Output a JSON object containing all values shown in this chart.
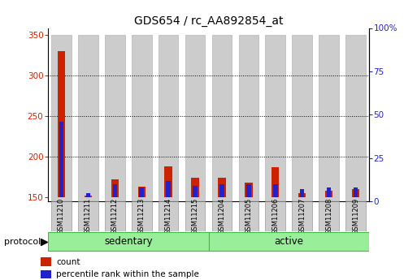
{
  "title": "GDS654 / rc_AA892854_at",
  "samples": [
    "GSM11210",
    "GSM11211",
    "GSM11212",
    "GSM11213",
    "GSM11214",
    "GSM11215",
    "GSM11204",
    "GSM11205",
    "GSM11206",
    "GSM11207",
    "GSM11208",
    "GSM11209"
  ],
  "count_values": [
    330,
    152,
    172,
    163,
    188,
    174,
    174,
    168,
    187,
    155,
    158,
    160
  ],
  "percentile_values": [
    46,
    5,
    10,
    8,
    12,
    9,
    10,
    10,
    10,
    7,
    8,
    8
  ],
  "groups": [
    {
      "label": "sedentary",
      "start": 0,
      "end": 6
    },
    {
      "label": "active",
      "start": 6,
      "end": 12
    }
  ],
  "protocol_label": "protocol",
  "count_color": "#cc2200",
  "percentile_color": "#2222cc",
  "bar_bg_color": "#cccccc",
  "group_bg_color": "#99ee99",
  "group_line_color": "#44bb44",
  "left_yticks": [
    150,
    200,
    250,
    300,
    350
  ],
  "right_yticks": [
    0,
    25,
    50,
    75,
    100
  ],
  "right_ytick_labels": [
    "0",
    "25",
    "50",
    "75",
    "100%"
  ],
  "ylim_left": [
    145,
    358
  ],
  "ylim_right": [
    0,
    100
  ],
  "grid_lines": [
    200,
    250,
    300
  ],
  "legend_count": "count",
  "legend_percentile": "percentile rank within the sample",
  "title_fontsize": 10,
  "tick_fontsize": 7.5,
  "sample_fontsize": 6,
  "group_fontsize": 8.5,
  "legend_fontsize": 7.5,
  "protocol_fontsize": 8
}
